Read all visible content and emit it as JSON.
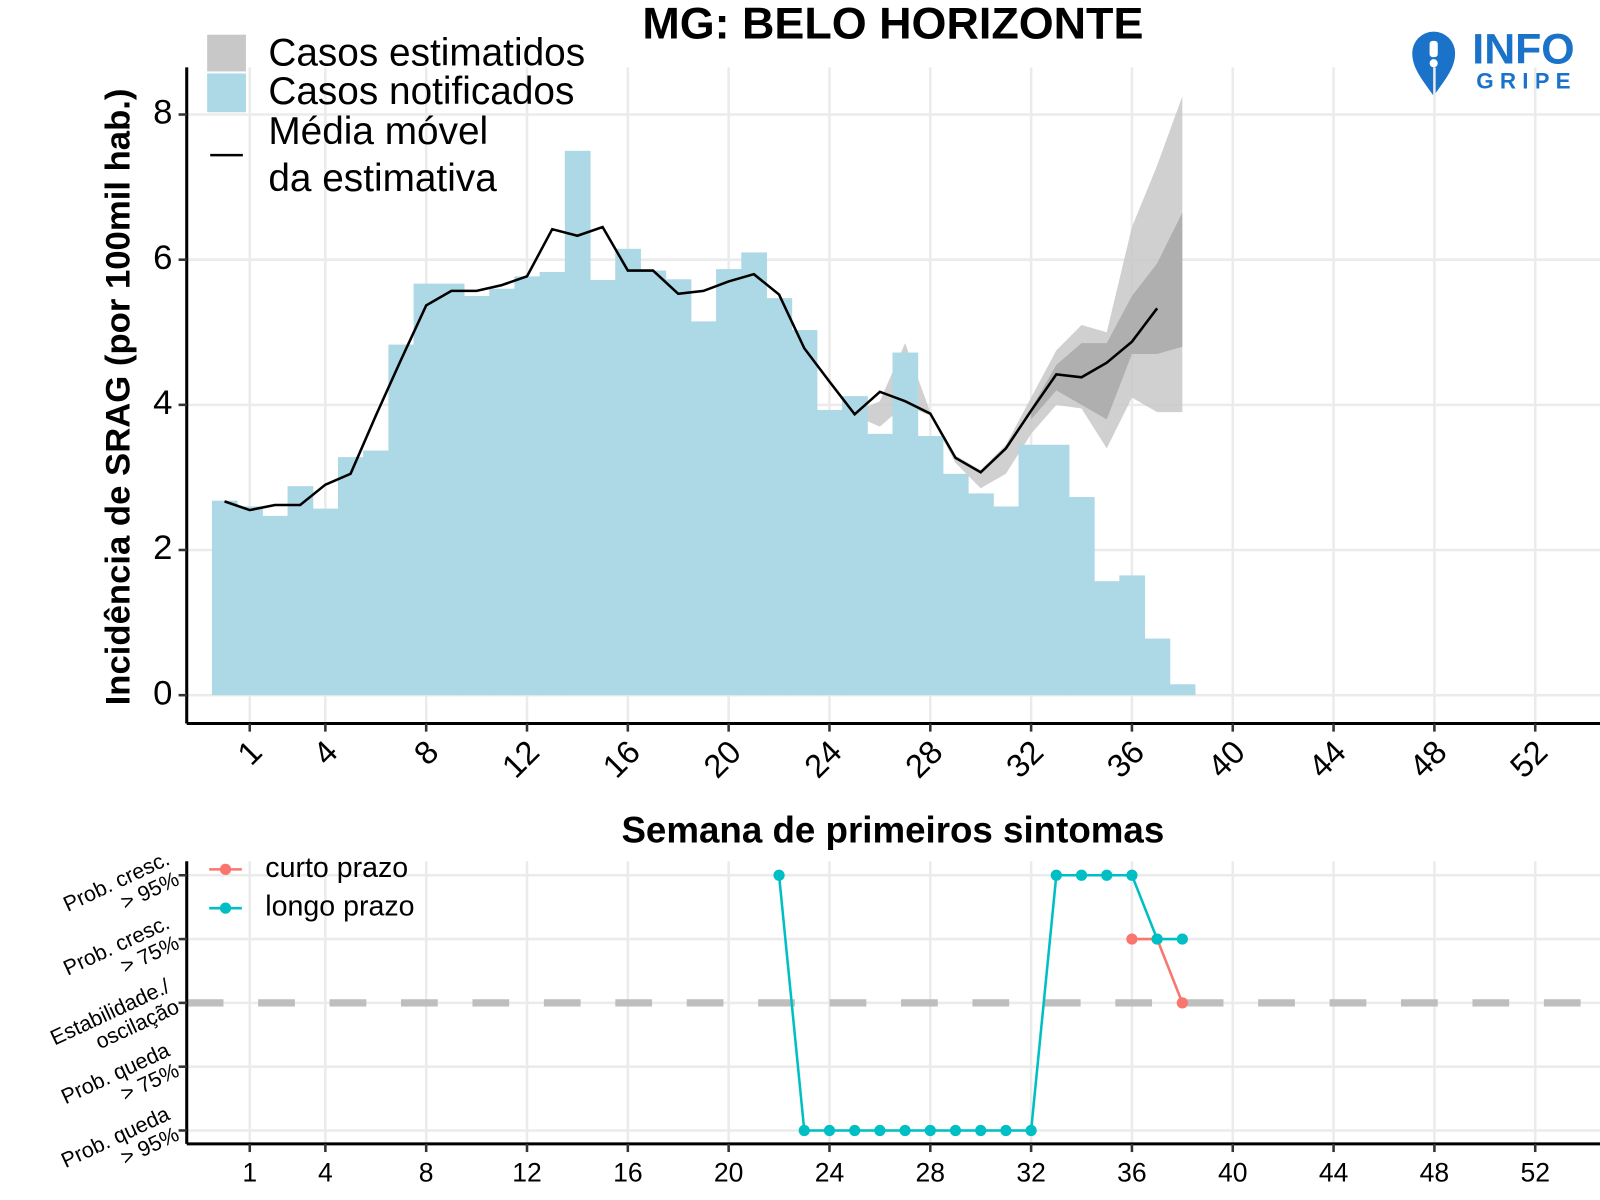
{
  "chart_data": [
    {
      "type": "bar",
      "title": "MG: BELO HORIZONTE",
      "xlabel": "Semana de primeiros sintomas",
      "ylabel": "Incidência de SRAG (por 100mil hab.)",
      "xlim": [
        -1.5,
        54.57
      ],
      "ylim": [
        -0.39,
        8.65
      ],
      "xticks": [
        1,
        4,
        8,
        12,
        16,
        20,
        24,
        28,
        32,
        36,
        40,
        44,
        48,
        52
      ],
      "yticks": [
        0,
        2,
        4,
        6,
        8
      ],
      "grid": true,
      "series": [
        {
          "name": "Casos estimatidos",
          "type": "band",
          "color": "#c8c8c8",
          "inner_color": "#a9a9a9",
          "x": [
            25,
            26,
            27,
            28,
            29,
            30,
            31,
            32,
            33,
            34,
            35,
            36,
            37,
            38
          ],
          "lower": [
            3.85,
            3.7,
            4.0,
            3.85,
            3.2,
            2.85,
            3.05,
            3.6,
            4.0,
            3.95,
            3.4,
            4.1,
            3.9,
            3.9
          ],
          "upper": [
            3.9,
            4.05,
            4.85,
            3.9,
            3.3,
            3.1,
            3.45,
            4.1,
            4.75,
            5.1,
            5.0,
            6.45,
            7.3,
            8.25
          ],
          "inner_x": [
            32,
            33,
            34,
            35,
            36,
            37,
            38
          ],
          "inner_lower": [
            3.8,
            4.2,
            4.0,
            3.8,
            4.7,
            4.7,
            4.8
          ],
          "inner_upper": [
            3.95,
            4.55,
            4.85,
            4.85,
            5.5,
            5.95,
            6.65
          ]
        },
        {
          "name": "Casos notificados",
          "type": "bar",
          "color": "#add8e6",
          "x": [
            0,
            1,
            2,
            3,
            4,
            5,
            6,
            7,
            8,
            9,
            10,
            11,
            12,
            13,
            14,
            15,
            16,
            17,
            18,
            19,
            20,
            21,
            22,
            23,
            24,
            25,
            26,
            27,
            28,
            29,
            30,
            31,
            32,
            33,
            34,
            35,
            36,
            37,
            38
          ],
          "values": [
            2.68,
            2.6,
            2.47,
            2.88,
            2.57,
            3.28,
            3.37,
            4.83,
            5.67,
            5.67,
            5.5,
            5.6,
            5.77,
            5.83,
            7.5,
            5.72,
            6.15,
            5.85,
            5.73,
            5.15,
            5.87,
            6.1,
            5.47,
            5.03,
            3.93,
            4.12,
            3.6,
            4.72,
            3.57,
            3.05,
            2.78,
            2.6,
            3.45,
            3.45,
            2.73,
            1.57,
            1.65,
            0.78,
            0.15
          ]
        },
        {
          "name": [
            "Média móvel",
            "da estimativa"
          ],
          "type": "line",
          "color": "#000000",
          "x": [
            0,
            1,
            2,
            3,
            4,
            5,
            6,
            7,
            8,
            9,
            10,
            11,
            12,
            13,
            14,
            15,
            16,
            17,
            18,
            19,
            20,
            21,
            22,
            23,
            24,
            25,
            26,
            27,
            28,
            29,
            30,
            31,
            32,
            33,
            34,
            35,
            36,
            37
          ],
          "values": [
            2.67,
            2.55,
            2.62,
            2.62,
            2.9,
            3.05,
            3.85,
            4.62,
            5.37,
            5.57,
            5.57,
            5.65,
            5.77,
            6.42,
            6.33,
            6.45,
            5.85,
            5.85,
            5.53,
            5.57,
            5.7,
            5.8,
            5.52,
            4.78,
            4.32,
            3.87,
            4.18,
            4.05,
            3.88,
            3.27,
            3.07,
            3.4,
            3.92,
            4.42,
            4.38,
            4.58,
            4.87,
            5.33
          ]
        }
      ]
    },
    {
      "type": "line",
      "xlim": [
        -1.5,
        54.57
      ],
      "ylim": [
        -2.21,
        2.22
      ],
      "xticks": [
        1,
        4,
        8,
        12,
        16,
        20,
        24,
        28,
        32,
        36,
        40,
        44,
        48,
        52
      ],
      "yticks": [
        {
          "value": 2,
          "label": [
            "Prob. cresc.",
            "> 95%"
          ]
        },
        {
          "value": 1,
          "label": [
            "Prob. cresc.",
            "> 75%"
          ]
        },
        {
          "value": 0,
          "label": [
            "Estabilidade./",
            "oscilação"
          ]
        },
        {
          "value": -1,
          "label": [
            "Prob. queda",
            "> 75%"
          ]
        },
        {
          "value": -2,
          "label": [
            "Prob. queda",
            "> 95%"
          ]
        }
      ],
      "grid": true,
      "reference_line": 0,
      "series": [
        {
          "name": "curto prazo",
          "color": "#f8766d",
          "x": [
            36,
            37,
            38
          ],
          "values": [
            1,
            1,
            0
          ]
        },
        {
          "name": "longo prazo",
          "color": "#00bfc4",
          "x": [
            22,
            23,
            24,
            25,
            26,
            27,
            28,
            29,
            30,
            31,
            32,
            33,
            34,
            35,
            36,
            37,
            38
          ],
          "values": [
            2,
            -2,
            -2,
            -2,
            -2,
            -2,
            -2,
            -2,
            -2,
            -2,
            -2,
            2,
            2,
            2,
            2,
            1,
            1
          ]
        }
      ]
    }
  ],
  "logo": {
    "top": "INFO",
    "bottom": "GRIPE"
  }
}
